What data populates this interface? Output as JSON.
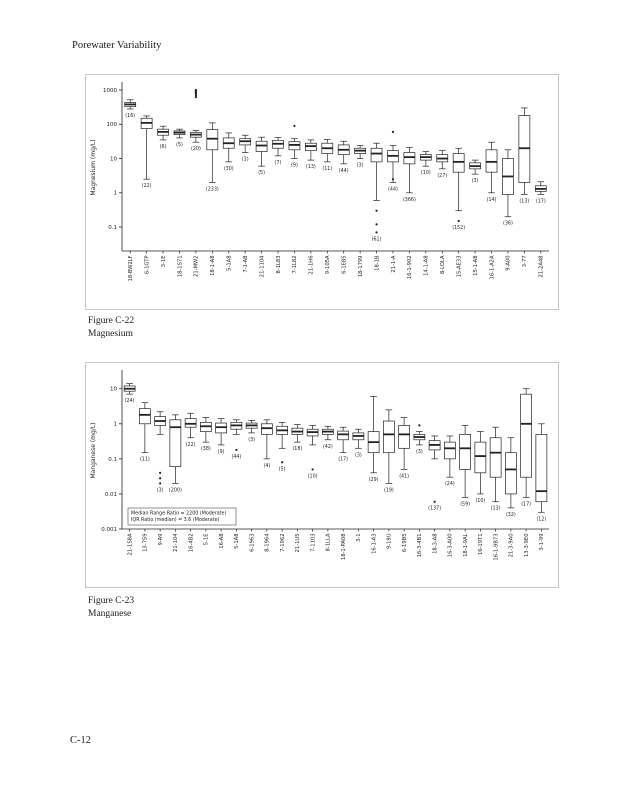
{
  "page": {
    "header": "Porewater Variability",
    "footer": "C-12"
  },
  "figures": [
    {
      "caption_line1": "Figure C-22",
      "caption_line2": "Magnesium"
    },
    {
      "caption_line1": "Figure C-23",
      "caption_line2": "Manganese"
    }
  ],
  "chart_data": [
    {
      "type": "box",
      "title": "",
      "ylabel": "Magnesium (mg/L)",
      "yscale": "log",
      "ylim": [
        0.02,
        1500
      ],
      "yticks": [
        0.1,
        1,
        10,
        100,
        1000
      ],
      "ytick_labels": [
        "0.1",
        "1",
        "10",
        "100",
        "1000"
      ],
      "grid": false,
      "categories": [
        "18-BW2LF",
        "6-1GTP",
        "3-1E",
        "18-1S71",
        "21-MW2",
        "18-1-A8",
        "5-1A8",
        "7-1-A8",
        "21-1104",
        "8-1L83",
        "7-1L82",
        "21-1H6",
        "9-105A",
        "6-1E85",
        "18-1799",
        "18-1B",
        "21-1-A",
        "16-1-902",
        "14-1-A8",
        "8-LOLA",
        "15-AE33",
        "15-1-A8",
        "16-1-A2A",
        "9-A00",
        "3-77",
        "21-2A48"
      ],
      "boxes": [
        {
          "low": 280,
          "q1": 330,
          "median": 380,
          "q3": 430,
          "high": 520,
          "n": 16
        },
        {
          "low": 2.5,
          "q1": 75,
          "median": 110,
          "q3": 150,
          "high": 175,
          "n": 22
        },
        {
          "low": 35,
          "q1": 48,
          "median": 60,
          "q3": 72,
          "high": 88,
          "n": 6
        },
        {
          "low": 40,
          "q1": 50,
          "median": 57,
          "q3": 64,
          "high": 72,
          "n": 5
        },
        {
          "low": 30,
          "q1": 42,
          "median": 50,
          "q3": 58,
          "high": 66,
          "outliers": [
            620,
            700,
            780,
            850,
            900,
            950,
            1000
          ],
          "n": 20
        },
        {
          "low": 2,
          "q1": 18,
          "median": 38,
          "q3": 70,
          "high": 110,
          "n": 233
        },
        {
          "low": 8,
          "q1": 20,
          "median": 28,
          "q3": 40,
          "high": 56,
          "n": 30
        },
        {
          "low": 15,
          "q1": 25,
          "median": 32,
          "q3": 38,
          "high": 48,
          "n": 3
        },
        {
          "low": 6,
          "q1": 16,
          "median": 24,
          "q3": 32,
          "high": 42,
          "n": 5
        },
        {
          "low": 12,
          "q1": 20,
          "median": 27,
          "q3": 34,
          "high": 41,
          "n": 7
        },
        {
          "low": 10,
          "q1": 18,
          "median": 25,
          "q3": 31,
          "high": 38,
          "outliers": [
            90
          ],
          "n": 9
        },
        {
          "low": 9,
          "q1": 17,
          "median": 23,
          "q3": 28,
          "high": 35,
          "n": 13
        },
        {
          "low": 8,
          "q1": 14,
          "median": 20,
          "q3": 28,
          "high": 36,
          "n": 11
        },
        {
          "low": 7,
          "q1": 13,
          "median": 18,
          "q3": 25,
          "high": 32,
          "n": 44
        },
        {
          "low": 10,
          "q1": 14,
          "median": 17,
          "q3": 20,
          "high": 24,
          "n": 3
        },
        {
          "low": 0.6,
          "q1": 8,
          "median": 14,
          "q3": 20,
          "high": 28,
          "outliers": [
            0.3,
            0.12,
            0.07
          ],
          "n": 61
        },
        {
          "low": 2,
          "q1": 8,
          "median": 12,
          "q3": 17,
          "high": 24,
          "outliers": [
            60,
            2.5
          ],
          "n": 44
        },
        {
          "low": 1,
          "q1": 7,
          "median": 11,
          "q3": 15,
          "high": 21,
          "n": 366
        },
        {
          "low": 6,
          "q1": 9,
          "median": 11,
          "q3": 13,
          "high": 16,
          "n": 10
        },
        {
          "low": 5,
          "q1": 8,
          "median": 10,
          "q3": 13,
          "high": 17,
          "n": 27
        },
        {
          "low": 0.3,
          "q1": 4,
          "median": 8,
          "q3": 14,
          "high": 20,
          "outliers": [
            0.15
          ],
          "n": 152
        },
        {
          "low": 3.5,
          "q1": 5,
          "median": 6,
          "q3": 7.5,
          "high": 9,
          "n": 3
        },
        {
          "low": 1,
          "q1": 4,
          "median": 8,
          "q3": 18,
          "high": 30,
          "n": 14
        },
        {
          "low": 0.2,
          "q1": 0.9,
          "median": 3,
          "q3": 10,
          "high": 18,
          "n": 36
        },
        {
          "low": 0.9,
          "q1": 2,
          "median": 20,
          "q3": 180,
          "high": 300,
          "n": 13
        },
        {
          "low": 0.9,
          "q1": 1.1,
          "median": 1.3,
          "q3": 1.6,
          "high": 2.1,
          "n": 17
        }
      ]
    },
    {
      "type": "box",
      "title": "",
      "ylabel": "Manganese (mg/L)",
      "yscale": "log",
      "ylim": [
        0.001,
        30
      ],
      "yticks": [
        0.001,
        0.01,
        0.1,
        1,
        10
      ],
      "ytick_labels": [
        "0.001",
        "0.01",
        "0.1",
        "1",
        "10"
      ],
      "grid": false,
      "annotation": {
        "lines": [
          "Median Range Ratio = 2200 (Moderate)",
          "IQR Ratio (median) = 3.6 (Moderate)"
        ]
      },
      "categories": [
        "21-1S8A",
        "13-7S9",
        "9-A9",
        "21-104",
        "16-4B2",
        "5-1E",
        "16-A8",
        "5-1A8",
        "6-1963",
        "8-1964",
        "7-1962",
        "21-1U5",
        "7-1103",
        "8-1LLA",
        "18-1-PA08",
        "3-1",
        "16-1-A3",
        "9-19U",
        "6-19B5",
        "16-3-4B1",
        "18-3-A8",
        "16-3-A00",
        "18-1-9AL",
        "16-19T1",
        "16-1-9B73",
        "21-3-9A0",
        "13-3-9E0",
        "3-1-99"
      ],
      "boxes": [
        {
          "low": 7,
          "q1": 8.5,
          "median": 10,
          "q3": 12,
          "high": 14,
          "n": 24
        },
        {
          "low": 0.15,
          "q1": 1.0,
          "median": 1.8,
          "q3": 2.7,
          "high": 4,
          "n": 11
        },
        {
          "low": 0.5,
          "q1": 0.9,
          "median": 1.2,
          "q3": 1.6,
          "high": 2.2,
          "outliers": [
            0.04,
            0.028,
            0.02
          ],
          "n": 3
        },
        {
          "low": 0.02,
          "q1": 0.06,
          "median": 0.8,
          "q3": 1.3,
          "high": 1.8,
          "n": 200
        },
        {
          "low": 0.4,
          "q1": 0.8,
          "median": 1.0,
          "q3": 1.4,
          "high": 2.0,
          "n": 22
        },
        {
          "low": 0.3,
          "q1": 0.6,
          "median": 0.85,
          "q3": 1.1,
          "high": 1.5,
          "n": 38
        },
        {
          "low": 0.25,
          "q1": 0.55,
          "median": 0.8,
          "q3": 1.05,
          "high": 1.4,
          "n": 9
        },
        {
          "low": 0.5,
          "q1": 0.7,
          "median": 0.9,
          "q3": 1.1,
          "high": 1.3,
          "outliers": [
            0.18
          ],
          "n": 44
        },
        {
          "low": 0.55,
          "q1": 0.75,
          "median": 0.9,
          "q3": 1.05,
          "high": 1.25,
          "n": 3
        },
        {
          "low": 0.1,
          "q1": 0.5,
          "median": 0.75,
          "q3": 1.0,
          "high": 1.3,
          "n": 4
        },
        {
          "low": 0.2,
          "q1": 0.5,
          "median": 0.65,
          "q3": 0.85,
          "high": 1.1,
          "outliers": [
            0.08
          ],
          "n": 5
        },
        {
          "low": 0.3,
          "q1": 0.5,
          "median": 0.6,
          "q3": 0.75,
          "high": 0.95,
          "n": 18
        },
        {
          "low": 0.25,
          "q1": 0.45,
          "median": 0.58,
          "q3": 0.7,
          "high": 0.9,
          "outliers": [
            0.05
          ],
          "n": 10
        },
        {
          "low": 0.35,
          "q1": 0.5,
          "median": 0.6,
          "q3": 0.7,
          "high": 0.85,
          "n": 42
        },
        {
          "low": 0.15,
          "q1": 0.35,
          "median": 0.5,
          "q3": 0.62,
          "high": 0.8,
          "n": 17
        },
        {
          "low": 0.2,
          "q1": 0.35,
          "median": 0.45,
          "q3": 0.55,
          "high": 0.7,
          "n": 3
        },
        {
          "low": 0.04,
          "q1": 0.15,
          "median": 0.3,
          "q3": 0.6,
          "high": 6,
          "n": 29
        },
        {
          "low": 0.02,
          "q1": 0.15,
          "median": 0.5,
          "q3": 1.2,
          "high": 2.5,
          "n": 19
        },
        {
          "low": 0.05,
          "q1": 0.2,
          "median": 0.5,
          "q3": 0.9,
          "high": 1.5,
          "n": 41
        },
        {
          "low": 0.25,
          "q1": 0.35,
          "median": 0.42,
          "q3": 0.5,
          "high": 0.6,
          "outliers": [
            0.9
          ],
          "n": 3
        },
        {
          "low": 0.1,
          "q1": 0.18,
          "median": 0.25,
          "q3": 0.33,
          "high": 0.45,
          "outliers": [
            0.006
          ],
          "n": 137
        },
        {
          "low": 0.03,
          "q1": 0.1,
          "median": 0.2,
          "q3": 0.3,
          "high": 0.45,
          "n": 24
        },
        {
          "low": 0.008,
          "q1": 0.05,
          "median": 0.2,
          "q3": 0.5,
          "high": 0.9,
          "n": 59
        },
        {
          "low": 0.01,
          "q1": 0.04,
          "median": 0.12,
          "q3": 0.3,
          "high": 0.6,
          "n": 10
        },
        {
          "low": 0.006,
          "q1": 0.03,
          "median": 0.15,
          "q3": 0.4,
          "high": 0.8,
          "n": 13
        },
        {
          "low": 0.004,
          "q1": 0.01,
          "median": 0.05,
          "q3": 0.15,
          "high": 0.4,
          "n": 32
        },
        {
          "low": 0.008,
          "q1": 0.03,
          "median": 1,
          "q3": 7,
          "high": 10,
          "n": 17
        },
        {
          "low": 0.003,
          "q1": 0.006,
          "median": 0.012,
          "q3": 0.5,
          "high": 1,
          "n": 12
        }
      ]
    }
  ]
}
